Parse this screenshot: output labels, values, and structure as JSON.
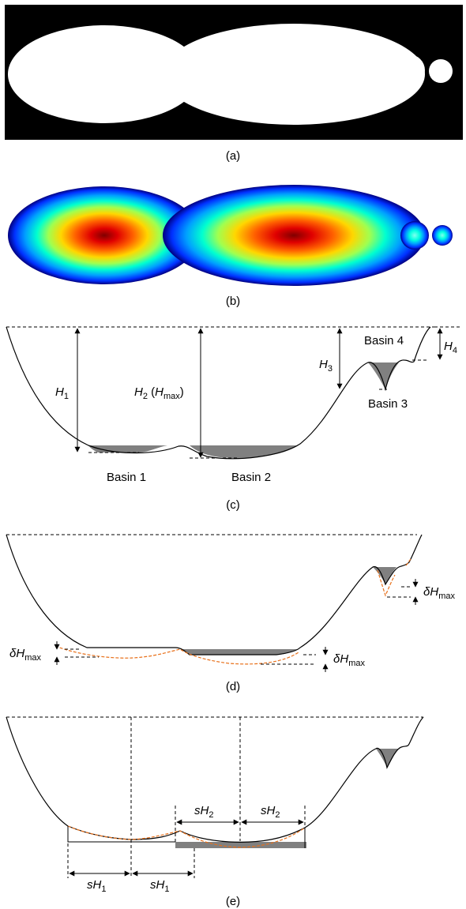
{
  "panels": {
    "a": {
      "caption": "(a)"
    },
    "b": {
      "caption": "(b)"
    },
    "c": {
      "caption": "(c)",
      "basin1": "Basin 1",
      "basin2": "Basin 2",
      "basin3": "Basin 3",
      "basin4": "Basin 4",
      "h_symbol": "H",
      "h1_sub": "1",
      "h2_sub": "2",
      "h2_paren_open": " (",
      "hmax_symbol": "H",
      "hmax_sub": "max",
      "h2_paren_close": ")",
      "h3_sub": "3",
      "h4_sub": "4"
    },
    "d": {
      "caption": "(d)",
      "delta": "δ",
      "h_symbol": "H",
      "max_sub": "max"
    },
    "e": {
      "caption": "(e)",
      "s": "s",
      "h_symbol": "H",
      "sub1": "1",
      "sub2": "2"
    }
  },
  "colors": {
    "background_a": "#000000",
    "shape_fill_a": "#ffffff",
    "basin_fill": "#808080",
    "dashed_orange": "#e8701a",
    "jet_center": "#800000",
    "jet_edge": "#00007f"
  }
}
